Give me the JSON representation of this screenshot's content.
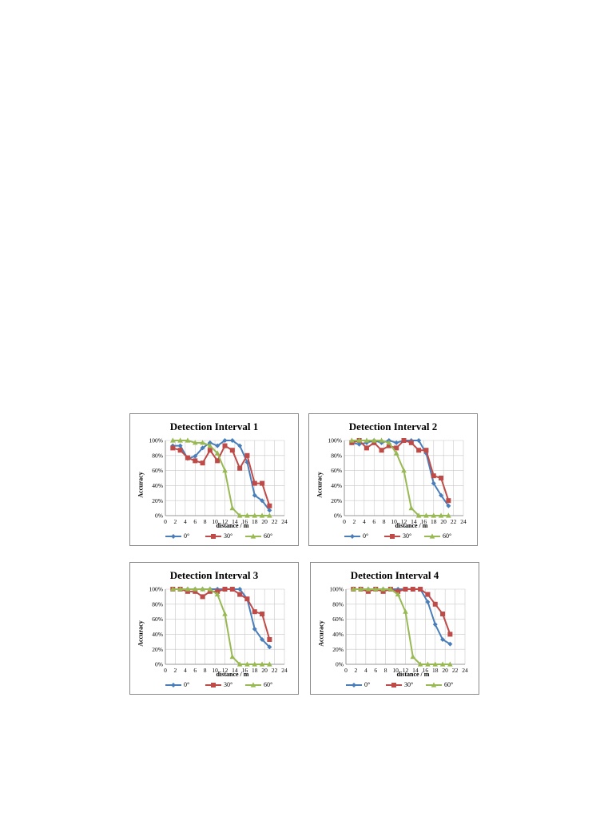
{
  "chart_data": [
    {
      "type": "line",
      "title": "Detection Interval 1",
      "xlabel": "distance / m",
      "ylabel": "Accuracy",
      "xlim": [
        0,
        24
      ],
      "ylim": [
        0,
        100
      ],
      "x_ticks": [
        "0",
        "2",
        "4",
        "6",
        "8",
        "10",
        "12",
        "14",
        "16",
        "18",
        "20",
        "22",
        "24"
      ],
      "y_ticks": [
        "0%",
        "20%",
        "40%",
        "60%",
        "80%",
        "100%"
      ],
      "grid": true,
      "legend_position": "bottom",
      "series": [
        {
          "name": "0°",
          "color": "#4a7ebb",
          "marker": "diamond",
          "x": [
            1.5,
            3,
            4.5,
            6,
            7.5,
            9,
            10.5,
            12,
            13.5,
            15,
            16.5,
            18,
            19.5,
            21
          ],
          "values": [
            93,
            93,
            76,
            79,
            90,
            97,
            93,
            100,
            100,
            93,
            71,
            27,
            20,
            7
          ]
        },
        {
          "name": "30°",
          "color": "#be4b48",
          "marker": "square",
          "x": [
            1.5,
            3,
            4.5,
            6,
            7.5,
            9,
            10.5,
            12,
            13.5,
            15,
            16.5,
            18,
            19.5,
            21
          ],
          "values": [
            90,
            87,
            77,
            73,
            70,
            87,
            73,
            93,
            87,
            63,
            80,
            43,
            43,
            13
          ]
        },
        {
          "name": "60°",
          "color": "#98b954",
          "marker": "triangle",
          "x": [
            1.5,
            3,
            4.5,
            6,
            7.5,
            9,
            10.5,
            12,
            13.5,
            15,
            16.5,
            18,
            19.5,
            21
          ],
          "values": [
            100,
            100,
            100,
            97,
            97,
            93,
            83,
            60,
            10,
            0,
            0,
            0,
            0,
            0
          ]
        }
      ]
    },
    {
      "type": "line",
      "title": "Detection Interval 2",
      "xlabel": "distance / m",
      "ylabel": "Accuracy",
      "xlim": [
        0,
        24
      ],
      "ylim": [
        0,
        100
      ],
      "x_ticks": [
        "0",
        "2",
        "4",
        "6",
        "8",
        "10",
        "12",
        "14",
        "16",
        "18",
        "20",
        "22",
        "24"
      ],
      "y_ticks": [
        "0%",
        "20%",
        "40%",
        "60%",
        "80%",
        "100%"
      ],
      "grid": true,
      "legend_position": "bottom",
      "series": [
        {
          "name": "0°",
          "color": "#4a7ebb",
          "marker": "diamond",
          "x": [
            1.5,
            3,
            4.5,
            6,
            7.5,
            9,
            10.5,
            12,
            13.5,
            15,
            16.5,
            18,
            19.5,
            21
          ],
          "values": [
            97,
            95,
            97,
            100,
            97,
            100,
            97,
            100,
            100,
            100,
            83,
            43,
            27,
            13
          ]
        },
        {
          "name": "30°",
          "color": "#be4b48",
          "marker": "square",
          "x": [
            1.5,
            3,
            4.5,
            6,
            7.5,
            9,
            10.5,
            12,
            13.5,
            15,
            16.5,
            18,
            19.5,
            21
          ],
          "values": [
            97,
            100,
            90,
            97,
            87,
            93,
            90,
            100,
            97,
            87,
            87,
            53,
            50,
            20
          ]
        },
        {
          "name": "60°",
          "color": "#98b954",
          "marker": "triangle",
          "x": [
            1.5,
            3,
            4.5,
            6,
            7.5,
            9,
            10.5,
            12,
            13.5,
            15,
            16.5,
            18,
            19.5,
            21
          ],
          "values": [
            100,
            100,
            100,
            100,
            100,
            97,
            83,
            60,
            10,
            0,
            0,
            0,
            0,
            0
          ]
        }
      ]
    },
    {
      "type": "line",
      "title": "Detection Interval 3",
      "xlabel": "distance / m",
      "ylabel": "Accuracy",
      "xlim": [
        0,
        24
      ],
      "ylim": [
        0,
        100
      ],
      "x_ticks": [
        "0",
        "2",
        "4",
        "6",
        "8",
        "10",
        "12",
        "14",
        "16",
        "18",
        "20",
        "22",
        "24"
      ],
      "y_ticks": [
        "0%",
        "20%",
        "40%",
        "60%",
        "80%",
        "100%"
      ],
      "grid": true,
      "legend_position": "bottom",
      "series": [
        {
          "name": "0°",
          "color": "#4a7ebb",
          "marker": "diamond",
          "x": [
            1.5,
            3,
            4.5,
            6,
            7.5,
            9,
            10.5,
            12,
            13.5,
            15,
            16.5,
            18,
            19.5,
            21
          ],
          "values": [
            100,
            100,
            100,
            100,
            100,
            100,
            100,
            100,
            100,
            100,
            87,
            47,
            33,
            23
          ]
        },
        {
          "name": "30°",
          "color": "#be4b48",
          "marker": "square",
          "x": [
            1.5,
            3,
            4.5,
            6,
            7.5,
            9,
            10.5,
            12,
            13.5,
            15,
            16.5,
            18,
            19.5,
            21
          ],
          "values": [
            100,
            100,
            97,
            97,
            90,
            97,
            97,
            100,
            100,
            93,
            87,
            70,
            67,
            33
          ]
        },
        {
          "name": "60°",
          "color": "#98b954",
          "marker": "triangle",
          "x": [
            1.5,
            3,
            4.5,
            6,
            7.5,
            9,
            10.5,
            12,
            13.5,
            15,
            16.5,
            18,
            19.5,
            21
          ],
          "values": [
            100,
            100,
            100,
            100,
            100,
            100,
            93,
            67,
            10,
            0,
            0,
            0,
            0,
            0
          ]
        }
      ]
    },
    {
      "type": "line",
      "title": "Detection Interval 4",
      "xlabel": "distance / m",
      "ylabel": "Accuracy",
      "xlim": [
        0,
        24
      ],
      "ylim": [
        0,
        100
      ],
      "x_ticks": [
        "0",
        "2",
        "4",
        "6",
        "8",
        "10",
        "12",
        "14",
        "16",
        "18",
        "20",
        "22",
        "24"
      ],
      "y_ticks": [
        "0%",
        "20%",
        "40%",
        "60%",
        "80%",
        "100%"
      ],
      "grid": true,
      "legend_position": "bottom",
      "series": [
        {
          "name": "0°",
          "color": "#4a7ebb",
          "marker": "diamond",
          "x": [
            1.5,
            3,
            4.5,
            6,
            7.5,
            9,
            10.5,
            12,
            13.5,
            15,
            16.5,
            18,
            19.5,
            21
          ],
          "values": [
            100,
            100,
            100,
            100,
            100,
            100,
            100,
            100,
            100,
            100,
            83,
            53,
            33,
            27
          ]
        },
        {
          "name": "30°",
          "color": "#be4b48",
          "marker": "square",
          "x": [
            1.5,
            3,
            4.5,
            6,
            7.5,
            9,
            10.5,
            12,
            13.5,
            15,
            16.5,
            18,
            19.5,
            21
          ],
          "values": [
            100,
            100,
            97,
            100,
            97,
            100,
            97,
            100,
            100,
            100,
            93,
            80,
            67,
            40
          ]
        },
        {
          "name": "60°",
          "color": "#98b954",
          "marker": "triangle",
          "x": [
            1.5,
            3,
            4.5,
            6,
            7.5,
            9,
            10.5,
            12,
            13.5,
            15,
            16.5,
            18,
            19.5,
            21
          ],
          "values": [
            100,
            100,
            100,
            100,
            100,
            100,
            93,
            70,
            10,
            0,
            0,
            0,
            0,
            0
          ]
        }
      ]
    }
  ]
}
